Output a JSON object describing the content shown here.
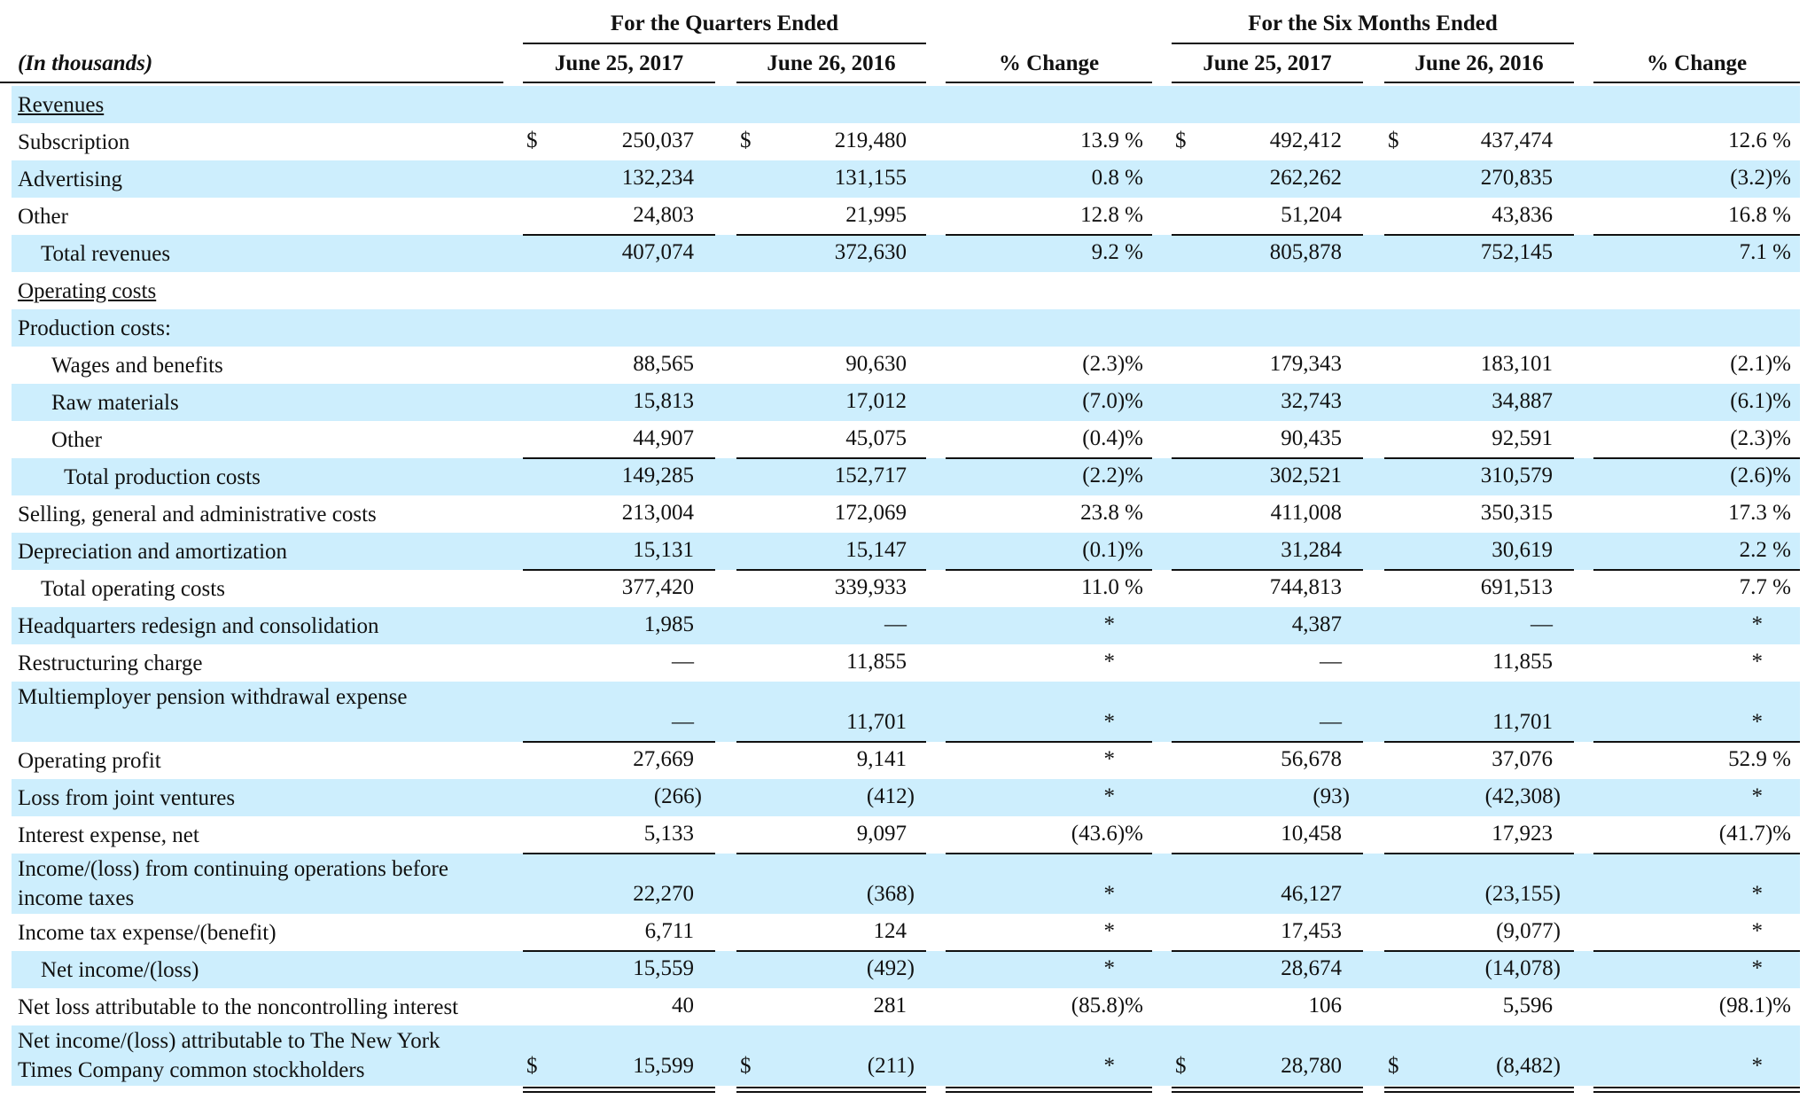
{
  "header": {
    "unit_note": "(In thousands)",
    "groups": [
      "For the Quarters Ended",
      "For the Six Months Ended"
    ],
    "columns": [
      "June 25, 2017",
      "June 26, 2016",
      "% Change",
      "June 25, 2017",
      "June 26, 2016",
      "% Change"
    ]
  },
  "table": {
    "rows": [
      {
        "label": "Revenues"
      },
      {
        "label": "Subscription",
        "currency": "$",
        "cells": [
          "250,037",
          "219,480",
          "13.9 %",
          "492,412",
          "437,474",
          "12.6 %"
        ]
      },
      {
        "label": "Advertising",
        "cells": [
          "132,234",
          "131,155",
          "0.8 %",
          "262,262",
          "270,835",
          "(3.2)%"
        ]
      },
      {
        "label": "Other",
        "cells": [
          "24,803",
          "21,995",
          "12.8 %",
          "51,204",
          "43,836",
          "16.8 %"
        ]
      },
      {
        "label": "Total revenues",
        "cells": [
          "407,074",
          "372,630",
          "9.2 %",
          "805,878",
          "752,145",
          "7.1 %"
        ]
      },
      {
        "label": "Operating costs"
      },
      {
        "label": "Production costs:"
      },
      {
        "label": "Wages and benefits",
        "cells": [
          "88,565",
          "90,630",
          "(2.3)%",
          "179,343",
          "183,101",
          "(2.1)%"
        ]
      },
      {
        "label": "Raw materials",
        "cells": [
          "15,813",
          "17,012",
          "(7.0)%",
          "32,743",
          "34,887",
          "(6.1)%"
        ]
      },
      {
        "label": "Other",
        "cells": [
          "44,907",
          "45,075",
          "(0.4)%",
          "90,435",
          "92,591",
          "(2.3)%"
        ]
      },
      {
        "label": "Total production costs",
        "cells": [
          "149,285",
          "152,717",
          "(2.2)%",
          "302,521",
          "310,579",
          "(2.6)%"
        ]
      },
      {
        "label": "Selling, general and administrative costs",
        "cells": [
          "213,004",
          "172,069",
          "23.8 %",
          "411,008",
          "350,315",
          "17.3 %"
        ]
      },
      {
        "label": "Depreciation and amortization",
        "cells": [
          "15,131",
          "15,147",
          "(0.1)%",
          "31,284",
          "30,619",
          "2.2 %"
        ]
      },
      {
        "label": "Total operating costs",
        "cells": [
          "377,420",
          "339,933",
          "11.0 %",
          "744,813",
          "691,513",
          "7.7 %"
        ]
      },
      {
        "label": "Headquarters redesign and consolidation",
        "cells": [
          "1,985",
          "—",
          "*",
          "4,387",
          "—",
          "*"
        ]
      },
      {
        "label": "Restructuring charge",
        "cells": [
          "—",
          "11,855",
          "*",
          "—",
          "11,855",
          "*"
        ]
      },
      {
        "label": "Multiemployer pension withdrawal expense",
        "cells": [
          "—",
          "11,701",
          "*",
          "—",
          "11,701",
          "*"
        ]
      },
      {
        "label": "Operating profit",
        "cells": [
          "27,669",
          "9,141",
          "*",
          "56,678",
          "37,076",
          "52.9 %"
        ]
      },
      {
        "label": "Loss from joint ventures",
        "cells": [
          "(266)",
          "(412)",
          "*",
          "(93)",
          "(42,308)",
          "*"
        ]
      },
      {
        "label": "Interest expense, net",
        "cells": [
          "5,133",
          "9,097",
          "(43.6)%",
          "10,458",
          "17,923",
          "(41.7)%"
        ]
      },
      {
        "label": "Income/(loss) from continuing operations before income taxes",
        "cells": [
          "22,270",
          "(368)",
          "*",
          "46,127",
          "(23,155)",
          "*"
        ]
      },
      {
        "label": "Income tax expense/(benefit)",
        "cells": [
          "6,711",
          "124",
          "*",
          "17,453",
          "(9,077)",
          "*"
        ]
      },
      {
        "label": "Net income/(loss)",
        "cells": [
          "15,559",
          "(492)",
          "*",
          "28,674",
          "(14,078)",
          "*"
        ]
      },
      {
        "label": "Net loss attributable to the noncontrolling interest",
        "cells": [
          "40",
          "281",
          "(85.8)%",
          "106",
          "5,596",
          "(98.1)%"
        ]
      },
      {
        "label": "Net income/(loss) attributable to The New York Times Company common stockholders",
        "currency": "$",
        "cells": [
          "15,599",
          "(211)",
          "*",
          "28,780",
          "(8,482)",
          "*"
        ]
      }
    ]
  }
}
